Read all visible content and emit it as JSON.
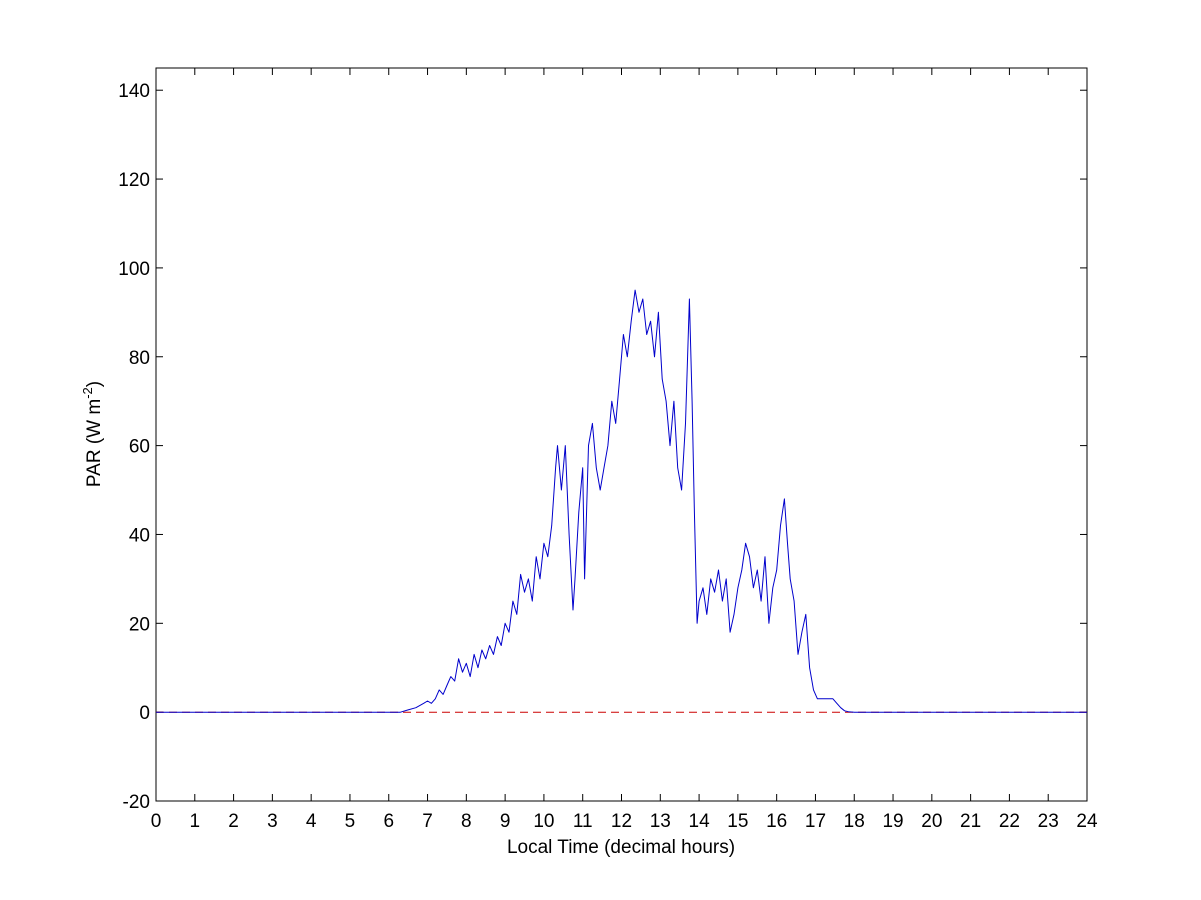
{
  "chart_data": {
    "type": "line",
    "xlabel": "Local Time (decimal hours)",
    "ylabel": {
      "prefix": "PAR (W m",
      "superscript": "-2",
      "suffix": ")"
    },
    "xlim": [
      0,
      24
    ],
    "ylim": [
      -20,
      145
    ],
    "x_ticks": [
      0,
      1,
      2,
      3,
      4,
      5,
      6,
      7,
      8,
      9,
      10,
      11,
      12,
      13,
      14,
      15,
      16,
      17,
      18,
      19,
      20,
      21,
      22,
      23,
      24
    ],
    "y_ticks": [
      -20,
      0,
      20,
      40,
      60,
      80,
      100,
      120,
      140
    ],
    "grid": false,
    "legend": "none",
    "series": [
      {
        "color": "#0000cc",
        "style": "solid",
        "x": [
          0,
          6.3,
          6.5,
          6.7,
          6.9,
          7.0,
          7.1,
          7.2,
          7.3,
          7.4,
          7.5,
          7.6,
          7.7,
          7.8,
          7.9,
          8.0,
          8.1,
          8.2,
          8.3,
          8.4,
          8.5,
          8.6,
          8.7,
          8.8,
          8.9,
          9.0,
          9.1,
          9.2,
          9.3,
          9.4,
          9.5,
          9.6,
          9.7,
          9.8,
          9.9,
          10.0,
          10.1,
          10.2,
          10.3,
          10.35,
          10.45,
          10.55,
          10.65,
          10.75,
          10.8,
          10.9,
          11.0,
          11.05,
          11.15,
          11.25,
          11.35,
          11.45,
          11.55,
          11.65,
          11.75,
          11.85,
          11.95,
          12.05,
          12.15,
          12.25,
          12.35,
          12.45,
          12.55,
          12.65,
          12.75,
          12.85,
          12.95,
          13.05,
          13.15,
          13.25,
          13.35,
          13.45,
          13.55,
          13.65,
          13.75,
          13.82,
          13.88,
          13.95,
          14.0,
          14.1,
          14.2,
          14.3,
          14.4,
          14.5,
          14.6,
          14.7,
          14.8,
          14.9,
          15.0,
          15.1,
          15.2,
          15.3,
          15.4,
          15.5,
          15.6,
          15.7,
          15.8,
          15.9,
          16.0,
          16.1,
          16.2,
          16.28,
          16.35,
          16.45,
          16.55,
          16.65,
          16.75,
          16.85,
          16.95,
          17.05,
          17.15,
          17.25,
          17.35,
          17.45,
          17.55,
          17.65,
          17.75,
          17.85,
          18.0,
          18.3,
          19.0,
          24
        ],
        "y": [
          0,
          0,
          0.5,
          1,
          2,
          2.5,
          2,
          3,
          5,
          4,
          6,
          8,
          7,
          12,
          9,
          11,
          8,
          13,
          10,
          14,
          12,
          15,
          13,
          17,
          15,
          20,
          18,
          25,
          22,
          31,
          27,
          30,
          25,
          35,
          30,
          38,
          35,
          42,
          55,
          60,
          50,
          60,
          40,
          23,
          30,
          45,
          55,
          30,
          60,
          65,
          55,
          50,
          55,
          60,
          70,
          65,
          75,
          85,
          80,
          88,
          95,
          90,
          93,
          85,
          88,
          80,
          90,
          75,
          70,
          60,
          70,
          55,
          50,
          65,
          93,
          70,
          45,
          20,
          25,
          28,
          22,
          30,
          27,
          32,
          25,
          30,
          18,
          22,
          28,
          32,
          38,
          35,
          28,
          32,
          25,
          35,
          20,
          28,
          32,
          42,
          48,
          38,
          30,
          25,
          13,
          18,
          22,
          10,
          5,
          3,
          3,
          3,
          3,
          3,
          2,
          1,
          0.3,
          0.1,
          0,
          0,
          0,
          0
        ]
      },
      {
        "color": "#cc0000",
        "style": "dashed",
        "x": [
          0,
          24
        ],
        "y": [
          0,
          0
        ]
      }
    ]
  }
}
